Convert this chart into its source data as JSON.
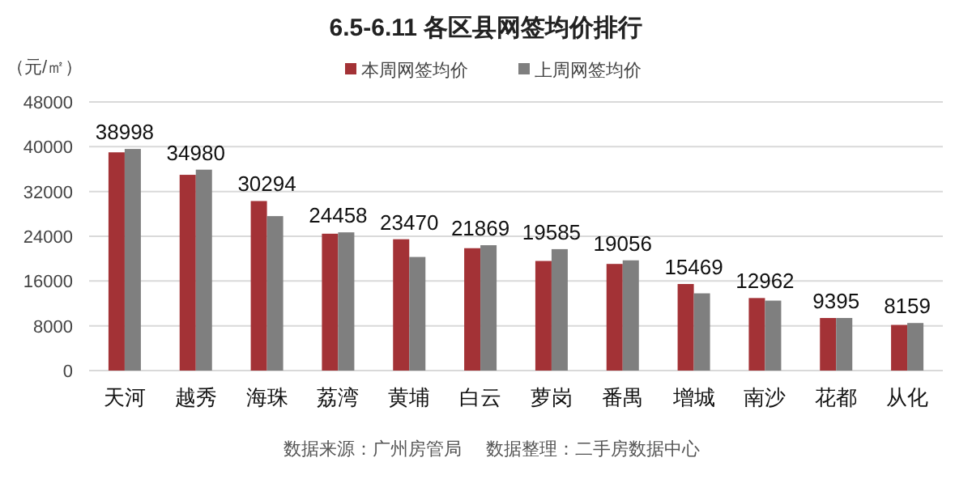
{
  "chart_data": {
    "type": "bar",
    "title": "6.5-6.11 各区县网签均价排行",
    "ylabel": "（元/㎡）",
    "categories": [
      "天河",
      "越秀",
      "海珠",
      "荔湾",
      "黄埔",
      "白云",
      "萝岗",
      "番禺",
      "增城",
      "南沙",
      "花都",
      "从化"
    ],
    "series": [
      {
        "name": "本周网签均价",
        "color": "#a33236",
        "values": [
          38998,
          34980,
          30294,
          24458,
          23470,
          21869,
          19585,
          19056,
          15469,
          12962,
          9395,
          8159
        ],
        "value_labels": [
          "38998",
          "34980",
          "30294",
          "24458",
          "23470",
          "21869",
          "19585",
          "19056",
          "15469",
          "12962",
          "9395",
          "8159"
        ]
      },
      {
        "name": "上周网签均价",
        "color": "#7f7f7f",
        "values": [
          39600,
          35900,
          27600,
          24700,
          20300,
          22400,
          21700,
          19700,
          13800,
          12500,
          9400,
          8500
        ]
      }
    ],
    "ylim": [
      0,
      48000
    ],
    "yticks": [
      0,
      8000,
      16000,
      24000,
      32000,
      40000,
      48000
    ],
    "grid": "y",
    "legend": "top",
    "annotations": [
      "数据来源：广州房管局",
      "数据整理：二手房数据中心"
    ]
  }
}
